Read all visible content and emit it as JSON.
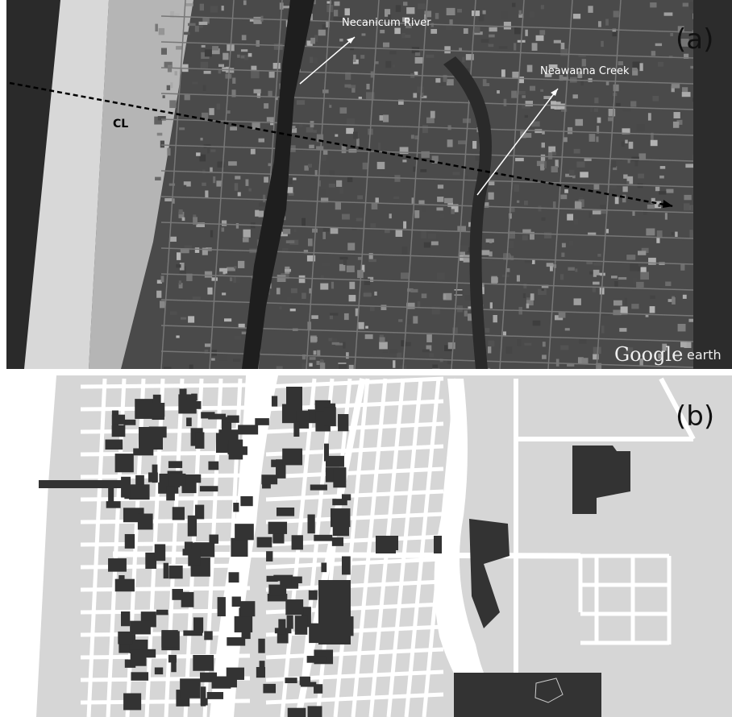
{
  "panel_a": {
    "label": "(a)",
    "river_label": "Necanicum River",
    "creek_label": "Neawanna Creek",
    "line_label": "CL",
    "watermark": {
      "brand": "Google",
      "product": "earth"
    }
  },
  "panel_b": {
    "label": "(b)"
  }
}
